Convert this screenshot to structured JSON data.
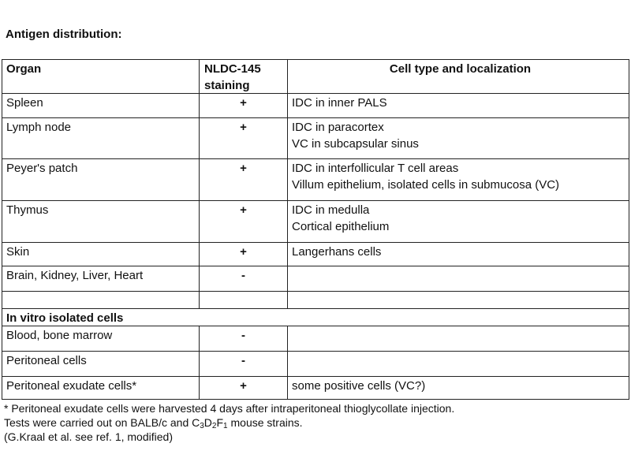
{
  "title": "Antigen distribution:",
  "headers": {
    "organ": "Organ",
    "staining_line1": "NLDC-145",
    "staining_line2": "staining",
    "cell": "Cell type and localization"
  },
  "rows": [
    {
      "organ": "Spleen",
      "staining": "+",
      "cell": [
        "IDC in inner PALS"
      ]
    },
    {
      "organ": "Lymph node",
      "staining": "+",
      "cell": [
        "IDC in paracortex",
        "VC in subcapsular sinus"
      ]
    },
    {
      "organ": "Peyer's patch",
      "staining": "+",
      "cell": [
        "IDC in interfollicular T cell areas",
        "Villum epithelium, isolated cells in submucosa (VC)"
      ]
    },
    {
      "organ": "Thymus",
      "staining": "+",
      "cell": [
        "IDC in medulla",
        "Cortical epithelium"
      ]
    },
    {
      "organ": "Skin",
      "staining": "+",
      "cell": [
        "Langerhans cells"
      ]
    },
    {
      "organ": "Brain, Kidney, Liver, Heart",
      "staining": "-",
      "cell": []
    }
  ],
  "section_label": "In vitro isolated cells",
  "in_vitro_rows": [
    {
      "organ": "Blood, bone marrow",
      "staining": "-",
      "cell": ""
    },
    {
      "organ": "Peritoneal cells",
      "staining": "-",
      "cell": ""
    },
    {
      "organ": "Peritoneal exudate cells*",
      "staining": "+",
      "cell": "some positive cells (VC?)"
    }
  ],
  "footnotes": {
    "line1": "* Peritoneal exudate cells were harvested 4 days after intraperitoneal thioglycollate injection.",
    "line2_prefix": "Tests were carried out on BALB/c and C",
    "sub1": "3",
    "d": "D",
    "sub2": "2",
    "f": "F",
    "sub3": "1",
    "line2_suffix": " mouse strains.",
    "line3": "(G.Kraal et al. see ref. 1, modified)"
  }
}
